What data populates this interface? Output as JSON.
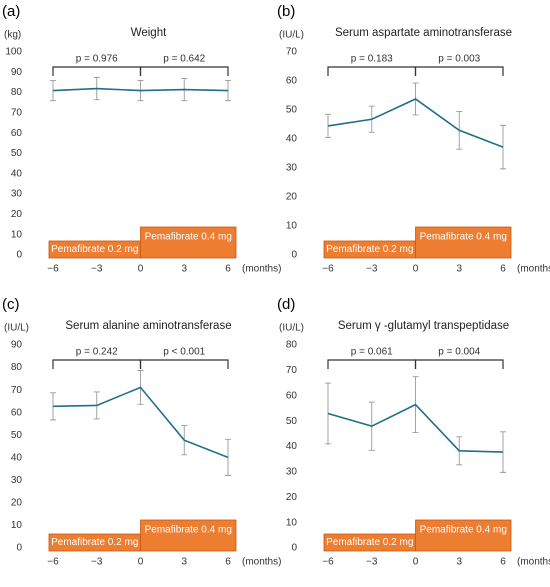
{
  "chart_data": [
    {
      "type": "line",
      "panel": "(a)",
      "title": "Weight",
      "y_unit": "(kg)",
      "x_unit": "(months)",
      "color": "#1f6f8b",
      "x": [
        -6,
        -3,
        0,
        3,
        6
      ],
      "values": [
        81,
        82,
        81,
        81.5,
        81
      ],
      "errors": [
        5,
        5.5,
        5,
        5.5,
        5
      ],
      "xlim": [
        -6,
        6
      ],
      "xticks": [
        {
          "value": -6,
          "label": "−6"
        },
        {
          "value": -3,
          "label": "−3"
        },
        0,
        3,
        6
      ],
      "ylim": [
        0,
        100
      ],
      "yticks": [
        0,
        10,
        20,
        30,
        40,
        50,
        60,
        70,
        80,
        90,
        100
      ],
      "brackets": [
        {
          "label": "p = 0.976",
          "x": [
            -6,
            0
          ]
        },
        {
          "label": "p = 0.642",
          "x": [
            0,
            6
          ]
        }
      ],
      "phases": [
        {
          "label": "Pemafibrate 0.2 mg",
          "x": [
            -6,
            0
          ]
        },
        {
          "label": "Pemafibrate 0.4 mg",
          "x": [
            0,
            6
          ]
        }
      ]
    },
    {
      "type": "line",
      "panel": "(b)",
      "title": "Serum aspartate aminotransferase",
      "y_unit": "(IU/L)",
      "x_unit": "(months)",
      "color": "#1f6f8b",
      "x": [
        -6,
        -3,
        0,
        3,
        6
      ],
      "values": [
        44.5,
        46.8,
        53.8,
        43,
        37.2
      ],
      "errors": [
        4,
        4.5,
        5.5,
        6.5,
        7.5
      ],
      "xlim": [
        -6,
        6
      ],
      "xticks": [
        {
          "value": -6,
          "label": "−6"
        },
        {
          "value": -3,
          "label": "−3"
        },
        0,
        3,
        6
      ],
      "ylim": [
        0,
        70
      ],
      "yticks": [
        0,
        10,
        20,
        30,
        40,
        50,
        60,
        70
      ],
      "brackets": [
        {
          "label": "p = 0.183",
          "x": [
            -6,
            0
          ]
        },
        {
          "label": "p = 0.003",
          "x": [
            0,
            6
          ]
        }
      ],
      "phases": [
        {
          "label": "Pemafibrate 0.2 mg",
          "x": [
            -6,
            0
          ]
        },
        {
          "label": "Pemafibrate 0.4 mg",
          "x": [
            0,
            6
          ]
        }
      ]
    },
    {
      "type": "line",
      "panel": "(c)",
      "title": "Serum alanine aminotransferase",
      "y_unit": "(IU/L)",
      "x_unit": "(months)",
      "color": "#1f6f8b",
      "x": [
        -6,
        -3,
        0,
        3,
        6
      ],
      "values": [
        62.8,
        63.2,
        71.2,
        47.8,
        40.2
      ],
      "errors": [
        6,
        6,
        7.5,
        6.5,
        8
      ],
      "xlim": [
        -6,
        6
      ],
      "xticks": [
        {
          "value": -6,
          "label": "−6"
        },
        {
          "value": -3,
          "label": "−3"
        },
        0,
        3,
        6
      ],
      "ylim": [
        0,
        90
      ],
      "yticks": [
        0,
        10,
        20,
        30,
        40,
        50,
        60,
        70,
        80,
        90
      ],
      "brackets": [
        {
          "label": "p = 0.242",
          "x": [
            -6,
            0
          ]
        },
        {
          "label": "p < 0.001",
          "x": [
            0,
            6
          ]
        }
      ],
      "phases": [
        {
          "label": "Pemafibrate 0.2 mg",
          "x": [
            -6,
            0
          ]
        },
        {
          "label": "Pemafibrate 0.4 mg",
          "x": [
            0,
            6
          ]
        }
      ]
    },
    {
      "type": "line",
      "panel": "(d)",
      "title": "Serum γ -glutamyl transpeptidase",
      "y_unit": "(IU/L)",
      "x_unit": "(months)",
      "color": "#1f6f8b",
      "x": [
        -6,
        -3,
        0,
        3,
        6
      ],
      "values": [
        53,
        48,
        56.5,
        38.3,
        37.8
      ],
      "errors": [
        12,
        9.5,
        11,
        5.5,
        8
      ],
      "xlim": [
        -6,
        6
      ],
      "xticks": [
        {
          "value": -6,
          "label": "−6"
        },
        {
          "value": -3,
          "label": "−3"
        },
        0,
        3,
        6
      ],
      "ylim": [
        0,
        80
      ],
      "yticks": [
        0,
        10,
        20,
        30,
        40,
        50,
        60,
        70,
        80
      ],
      "brackets": [
        {
          "label": "p = 0.061",
          "x": [
            -6,
            0
          ]
        },
        {
          "label": "p = 0.004",
          "x": [
            0,
            6
          ]
        }
      ],
      "phases": [
        {
          "label": "Pemafibrate 0.2 mg",
          "x": [
            -6,
            0
          ]
        },
        {
          "label": "Pemafibrate 0.4 mg",
          "x": [
            0,
            6
          ]
        }
      ]
    }
  ]
}
